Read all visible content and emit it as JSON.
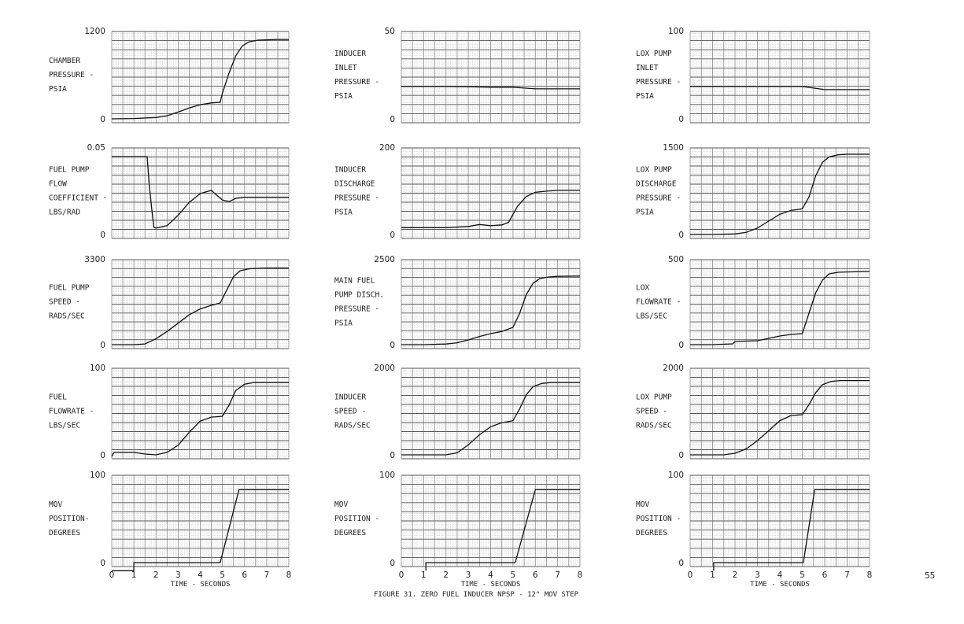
{
  "figure": {
    "caption": "FIGURE 31.  ZERO FUEL INDUCER NPSP - 12° MOV STEP",
    "page_number": "55",
    "xlabel": "TIME - SECONDS"
  },
  "chart_data": [
    {
      "id": "chamber-pressure",
      "type": "line",
      "col": 0,
      "row": 0,
      "ylabel_lines": [
        "CHAMBER",
        "PRESSURE -",
        "PSIA"
      ],
      "ylim": [
        0,
        1200
      ],
      "yticks": [
        "0",
        "1200"
      ],
      "xlim": [
        0,
        8
      ],
      "x": [
        0,
        1,
        2,
        2.5,
        3,
        3.5,
        4,
        4.5,
        4.9,
        5.0,
        5.3,
        5.6,
        5.9,
        6.2,
        6.6,
        7,
        7.5,
        8
      ],
      "y": [
        0,
        5,
        20,
        45,
        100,
        160,
        210,
        235,
        245,
        380,
        680,
        930,
        1080,
        1140,
        1165,
        1170,
        1175,
        1175
      ]
    },
    {
      "id": "fuel-pump-flow-coefficient",
      "type": "line",
      "col": 0,
      "row": 1,
      "ylabel_lines": [
        "FUEL PUMP",
        "FLOW",
        "COEFFICIENT -",
        "LBS/RAD"
      ],
      "ylim": [
        0,
        0.05
      ],
      "yticks": [
        "0",
        "0.05"
      ],
      "xlim": [
        0,
        8
      ],
      "x": [
        0,
        1.6,
        1.7,
        1.8,
        1.9,
        2.0,
        2.5,
        3,
        3.5,
        4,
        4.5,
        4.7,
        5.0,
        5.3,
        5.6,
        6,
        7,
        8
      ],
      "y": [
        0.0485,
        0.0485,
        0.03,
        0.017,
        0.0045,
        0.004,
        0.0055,
        0.012,
        0.02,
        0.0255,
        0.0275,
        0.025,
        0.0215,
        0.0205,
        0.0225,
        0.0232,
        0.0232,
        0.0232
      ]
    },
    {
      "id": "fuel-pump-speed",
      "type": "line",
      "col": 0,
      "row": 2,
      "ylabel_lines": [
        "FUEL PUMP",
        "SPEED -",
        "RADS/SEC"
      ],
      "ylim": [
        0,
        3300
      ],
      "yticks": [
        "0",
        "3300"
      ],
      "xlim": [
        0,
        8
      ],
      "x": [
        0,
        1,
        1.5,
        2,
        2.5,
        3,
        3.5,
        4,
        4.5,
        4.9,
        5.2,
        5.5,
        5.8,
        6.2,
        6.6,
        7,
        8
      ],
      "y": [
        0,
        0,
        30,
        250,
        550,
        900,
        1250,
        1500,
        1650,
        1750,
        2300,
        2850,
        3100,
        3180,
        3200,
        3210,
        3210
      ]
    },
    {
      "id": "fuel-flowrate",
      "type": "line",
      "col": 0,
      "row": 3,
      "ylabel_lines": [
        "FUEL",
        "FLOWRATE -",
        "LBS/SEC"
      ],
      "ylim": [
        0,
        100
      ],
      "yticks": [
        "0",
        "100"
      ],
      "xlim": [
        0,
        8
      ],
      "x": [
        0,
        0.1,
        1,
        1.5,
        2,
        2.5,
        3,
        3.5,
        4,
        4.5,
        5,
        5.3,
        5.6,
        6,
        6.4,
        7,
        8
      ],
      "y": [
        -2,
        3,
        3,
        1,
        0,
        3,
        12,
        28,
        42,
        47,
        48,
        62,
        80,
        88,
        90,
        90,
        90
      ]
    },
    {
      "id": "fuel-mov-position",
      "type": "line",
      "col": 0,
      "row": 4,
      "ylabel_lines": [
        "MOV",
        "POSITION-",
        "DEGREES"
      ],
      "ylim": [
        0,
        100
      ],
      "yticks": [
        "0",
        "100"
      ],
      "xlim": [
        0,
        8
      ],
      "show_xticks": true,
      "x": [
        0,
        1,
        1,
        4.9,
        5.75,
        8
      ],
      "y": [
        -10,
        -10,
        0,
        0,
        90,
        90
      ]
    },
    {
      "id": "inducer-inlet-pressure",
      "type": "line",
      "col": 1,
      "row": 0,
      "ylabel_lines": [
        "INDUCER",
        "INLET",
        "PRESSURE -",
        "PSIA"
      ],
      "ylim": [
        0,
        50
      ],
      "yticks": [
        "0",
        "50"
      ],
      "xlim": [
        0,
        8
      ],
      "x": [
        0,
        1,
        2,
        3,
        4,
        4.5,
        5,
        5.5,
        6,
        7,
        8
      ],
      "y": [
        20,
        20,
        20,
        19.8,
        19.5,
        19.5,
        19.5,
        19,
        18.5,
        18.5,
        18.5
      ]
    },
    {
      "id": "inducer-discharge-pressure",
      "type": "line",
      "col": 1,
      "row": 1,
      "ylabel_lines": [
        "INDUCER",
        "DISCHARGE",
        "PRESSURE -",
        "PSIA"
      ],
      "ylim": [
        0,
        200
      ],
      "yticks": [
        "0",
        "200"
      ],
      "xlim": [
        0,
        8
      ],
      "x": [
        0,
        1,
        2,
        3,
        3.5,
        4,
        4.5,
        4.8,
        5.2,
        5.6,
        6,
        6.5,
        7,
        8
      ],
      "y": [
        17,
        17,
        17,
        20,
        25,
        22,
        24,
        30,
        70,
        95,
        105,
        108,
        110,
        110
      ]
    },
    {
      "id": "main-fuel-pump-disch-pressure",
      "type": "line",
      "col": 1,
      "row": 2,
      "ylabel_lines": [
        "MAIN FUEL",
        "PUMP DISCH.",
        "PRESSURE -",
        "PSIA"
      ],
      "ylim": [
        0,
        2500
      ],
      "yticks": [
        "0",
        "2500"
      ],
      "xlim": [
        0,
        8
      ],
      "x": [
        0,
        1,
        2,
        2.5,
        3,
        3.5,
        4,
        4.5,
        5,
        5.3,
        5.6,
        5.9,
        6.2,
        6.6,
        7,
        8
      ],
      "y": [
        0,
        0,
        20,
        60,
        150,
        260,
        350,
        420,
        550,
        1000,
        1600,
        1950,
        2100,
        2150,
        2170,
        2180
      ]
    },
    {
      "id": "inducer-speed",
      "type": "line",
      "col": 1,
      "row": 3,
      "ylabel_lines": [
        "INDUCER",
        "SPEED -",
        "RADS/SEC"
      ],
      "ylim": [
        0,
        2000
      ],
      "yticks": [
        "0",
        "2000"
      ],
      "xlim": [
        0,
        8
      ],
      "x": [
        0,
        1,
        2,
        2.5,
        3,
        3.5,
        4,
        4.5,
        5,
        5.3,
        5.6,
        5.9,
        6.3,
        6.7,
        7,
        8
      ],
      "y": [
        0,
        0,
        0,
        50,
        250,
        500,
        700,
        800,
        850,
        1150,
        1500,
        1700,
        1780,
        1800,
        1800,
        1800
      ]
    },
    {
      "id": "inducer-mov-position",
      "type": "line",
      "col": 1,
      "row": 4,
      "ylabel_lines": [
        "MOV",
        "POSITION -",
        "DEGREES"
      ],
      "ylim": [
        0,
        100
      ],
      "yticks": [
        "0",
        "100"
      ],
      "xlim": [
        0,
        8
      ],
      "show_xticks": true,
      "x": [
        1.1,
        1.1,
        5.1,
        6,
        8
      ],
      "y": [
        -10,
        0,
        0,
        90,
        90
      ]
    },
    {
      "id": "lox-pump-inlet-pressure",
      "type": "line",
      "col": 2,
      "row": 0,
      "ylabel_lines": [
        "LOX PUMP",
        "INLET",
        "PRESSURE -",
        "PSIA"
      ],
      "ylim": [
        0,
        100
      ],
      "yticks": [
        "0",
        "100"
      ],
      "xlim": [
        0,
        8
      ],
      "x": [
        0,
        1,
        2,
        3,
        4,
        5,
        5.5,
        6,
        7,
        8
      ],
      "y": [
        40,
        40,
        40,
        40,
        40,
        40,
        38,
        36,
        36,
        36
      ]
    },
    {
      "id": "lox-pump-discharge-pressure",
      "type": "line",
      "col": 2,
      "row": 1,
      "ylabel_lines": [
        "LOX PUMP",
        "DISCHARGE",
        "PRESSURE -",
        "PSIA"
      ],
      "ylim": [
        0,
        1500
      ],
      "yticks": [
        "0",
        "1500"
      ],
      "xlim": [
        0,
        8
      ],
      "x": [
        0,
        1,
        2,
        2.5,
        3,
        3.5,
        4,
        4.5,
        5,
        5.3,
        5.6,
        5.9,
        6.2,
        6.6,
        7,
        8
      ],
      "y": [
        0,
        0,
        10,
        40,
        120,
        250,
        380,
        450,
        480,
        700,
        1100,
        1350,
        1450,
        1490,
        1500,
        1500
      ]
    },
    {
      "id": "lox-flowrate",
      "type": "line",
      "col": 2,
      "row": 2,
      "ylabel_lines": [
        "LOX",
        "FLOWRATE -",
        "LBS/SEC"
      ],
      "ylim": [
        0,
        500
      ],
      "yticks": [
        "0",
        "500"
      ],
      "xlim": [
        0,
        8
      ],
      "x": [
        0,
        1,
        1.9,
        2,
        3,
        3.5,
        4,
        4.5,
        5,
        5.3,
        5.6,
        5.9,
        6.2,
        6.6,
        7,
        8
      ],
      "y": [
        0,
        0,
        5,
        20,
        25,
        40,
        55,
        65,
        70,
        200,
        330,
        410,
        450,
        460,
        462,
        465
      ]
    },
    {
      "id": "lox-pump-speed",
      "type": "line",
      "col": 2,
      "row": 3,
      "ylabel_lines": [
        "LOX PUMP",
        "SPEED -",
        "RADS/SEC"
      ],
      "ylim": [
        0,
        2000
      ],
      "yticks": [
        "0",
        "2000"
      ],
      "xlim": [
        0,
        8
      ],
      "x": [
        0,
        1,
        1.5,
        2,
        2.5,
        3,
        3.5,
        4,
        4.5,
        5,
        5.3,
        5.6,
        5.9,
        6.3,
        6.7,
        7,
        8
      ],
      "y": [
        0,
        0,
        0,
        40,
        150,
        350,
        600,
        850,
        980,
        1000,
        1250,
        1550,
        1750,
        1830,
        1850,
        1850,
        1850
      ]
    },
    {
      "id": "lox-mov-position",
      "type": "line",
      "col": 2,
      "row": 4,
      "ylabel_lines": [
        "MOV",
        "POSITION -",
        "DEGREES"
      ],
      "ylim": [
        0,
        100
      ],
      "yticks": [
        "0",
        "100"
      ],
      "xlim": [
        0,
        8
      ],
      "show_xticks": true,
      "x": [
        1.05,
        1.05,
        5.05,
        5.55,
        8
      ],
      "y": [
        -10,
        0,
        0,
        90,
        90
      ]
    }
  ]
}
